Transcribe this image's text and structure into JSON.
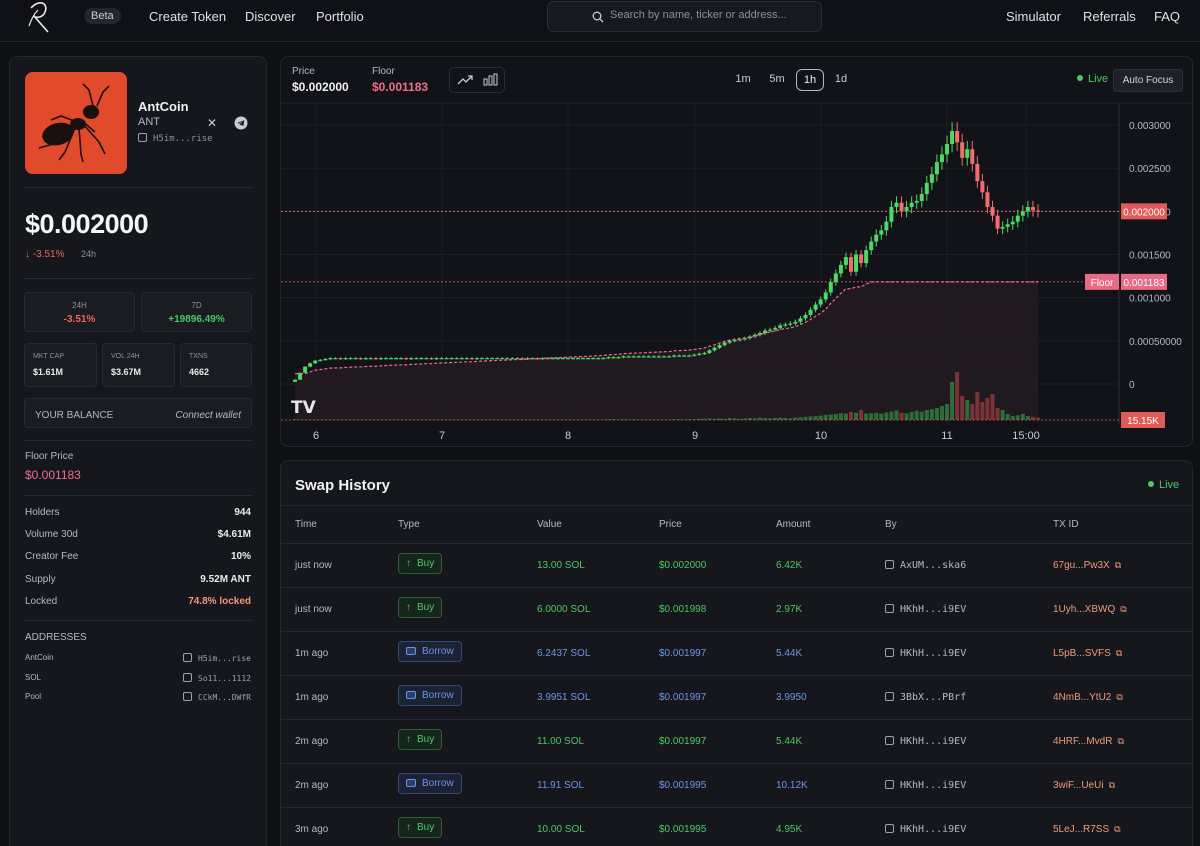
{
  "nav": {
    "beta": "Beta",
    "links": [
      "Create Token",
      "Discover",
      "Portfolio"
    ],
    "right_links": [
      "Simulator",
      "Referrals",
      "FAQ"
    ],
    "search_placeholder": "Search by name, ticker or address..."
  },
  "token": {
    "name": "AntCoin",
    "symbol": "ANT",
    "address": "H5im...rise",
    "price": "$0.002000",
    "change": "↓ -3.51%",
    "change_period": "24h",
    "stats": [
      {
        "label": "24H",
        "value": "-3.51%"
      },
      {
        "label": "7D",
        "value": "+19896.49%"
      }
    ],
    "market": [
      {
        "label": "MKT CAP",
        "value": "$1.61M"
      },
      {
        "label": "VOL 24H",
        "value": "$3.67M"
      },
      {
        "label": "TXNS",
        "value": "4662"
      }
    ],
    "balance_label": "YOUR BALANCE",
    "connect_label": "Connect wallet",
    "floor_label": "Floor Price",
    "floor_value": "$0.001183",
    "details": [
      {
        "label": "Holders",
        "value": "944"
      },
      {
        "label": "Volume 30d",
        "value": "$4.61M"
      },
      {
        "label": "Creator Fee",
        "value": "10%"
      },
      {
        "label": "Supply",
        "value": "9.52M ANT"
      },
      {
        "label": "Locked",
        "value": "74.8% locked"
      }
    ],
    "addresses_title": "ADDRESSES",
    "addresses": [
      {
        "label": "AntCoin",
        "value": "H5im...rise"
      },
      {
        "label": "SOL",
        "value": "So11...1112"
      },
      {
        "label": "Pool",
        "value": "CCkM...DWfR"
      }
    ]
  },
  "chart_header": {
    "price_label": "Price",
    "price_value": "$0.002000",
    "floor_label": "Floor",
    "floor_value": "$0.001183",
    "timeframes": [
      "1m",
      "5m",
      "1h",
      "1d"
    ],
    "active_timeframe": "1h",
    "live": "Live",
    "auto_focus": "Auto Focus"
  },
  "chart_data": {
    "type": "candlestick",
    "x_ticks": [
      "6",
      "7",
      "8",
      "9",
      "10",
      "11",
      "15:00"
    ],
    "y_ticks": [
      "0.003000",
      "0.002500",
      "0.002000",
      "0.001500",
      "0.001000",
      "0.00050000",
      "0"
    ],
    "y_range": [
      0,
      0.003
    ],
    "current_price": 0.002,
    "current_price_label": "0.002000",
    "floor_price": 0.001183,
    "floor_price_label": "0.001183",
    "floor_tag": "Floor",
    "volume_label": "15.15K",
    "colors": {
      "up": "#4cd964",
      "down": "#f26d6d",
      "floor": "#f06d8c"
    },
    "closes": [
      5e-05,
      0.00013,
      0.0002,
      0.00024,
      0.00027,
      0.00028,
      0.00029,
      0.0003,
      0.0003,
      0.00029,
      0.0003,
      0.0003,
      0.0003,
      0.00029,
      0.0003,
      0.0003,
      0.00029,
      0.0003,
      0.0003,
      0.0003,
      0.0003,
      0.0003,
      0.00029,
      0.0003,
      0.0003,
      0.0003,
      0.0003,
      0.00029,
      0.0003,
      0.0003,
      0.0003,
      0.0003,
      0.0003,
      0.0003,
      0.0003,
      0.00029,
      0.0003,
      0.0003,
      0.0003,
      0.0003,
      0.0003,
      0.0003,
      0.0003,
      0.0003,
      0.0003,
      0.00029,
      0.0003,
      0.0003,
      0.00029,
      0.0003,
      0.0003,
      0.0003,
      0.0003,
      0.0003,
      0.0003,
      0.0003,
      0.0003,
      0.0003,
      0.0003,
      0.0003,
      0.0003,
      0.0003,
      0.00031,
      0.00031,
      0.00031,
      0.00032,
      0.00032,
      0.00032,
      0.00032,
      0.00032,
      0.00032,
      0.00032,
      0.00032,
      0.00032,
      0.00032,
      0.00033,
      0.00033,
      0.00033,
      0.00033,
      0.00034,
      0.00035,
      0.00036,
      0.00039,
      0.00042,
      0.00045,
      0.00048,
      0.0005,
      0.00051,
      0.00052,
      0.00053,
      0.00055,
      0.00057,
      0.00059,
      0.00062,
      0.00063,
      0.00065,
      0.00068,
      0.00069,
      0.0007,
      0.00072,
      0.00076,
      0.0008,
      0.00086,
      0.00092,
      0.00098,
      0.00106,
      0.00118,
      0.00128,
      0.00138,
      0.00147,
      0.0013,
      0.0015,
      0.0014,
      0.00155,
      0.00165,
      0.00173,
      0.00178,
      0.00188,
      0.00205,
      0.0021,
      0.002,
      0.00205,
      0.0021,
      0.00212,
      0.0022,
      0.00233,
      0.00243,
      0.00257,
      0.00266,
      0.00278,
      0.00293,
      0.0028,
      0.00262,
      0.00272,
      0.00255,
      0.00235,
      0.00222,
      0.00205,
      0.00195,
      0.0018,
      0.00182,
      0.00185,
      0.00188,
      0.00195,
      0.002,
      0.00205,
      0.00201,
      0.002
    ],
    "volumes": [
      0.2,
      0.1,
      0.1,
      0.1,
      0.1,
      0.1,
      0.1,
      0.1,
      0.1,
      0.1,
      0.1,
      0.1,
      0.1,
      0.1,
      0.1,
      0.1,
      0.1,
      0.1,
      0.1,
      0.1,
      0.1,
      0.1,
      0.1,
      0.1,
      0.1,
      0.1,
      0.1,
      0.1,
      0.1,
      0.1,
      0.1,
      0.1,
      0.1,
      0.1,
      0.1,
      0.1,
      0.1,
      0.1,
      0.1,
      0.1,
      0.1,
      0.1,
      0.1,
      0.1,
      0.1,
      0.1,
      0.1,
      0.1,
      0.1,
      0.1,
      0.1,
      0.1,
      0.1,
      0.1,
      0.1,
      0.1,
      0.1,
      0.1,
      0.1,
      0.1,
      0.1,
      0.1,
      0.2,
      0.2,
      0.1,
      0.2,
      0.1,
      0.2,
      0.1,
      0.1,
      0.1,
      0.1,
      0.1,
      0.1,
      0.1,
      0.2,
      0.2,
      0.1,
      0.2,
      0.2,
      0.3,
      0.3,
      0.4,
      0.3,
      0.4,
      0.3,
      0.5,
      0.4,
      0.3,
      0.4,
      0.5,
      0.4,
      0.6,
      0.5,
      0.4,
      0.5,
      0.6,
      0.5,
      0.4,
      0.6,
      0.7,
      0.8,
      0.9,
      1.0,
      1.1,
      1.3,
      1.4,
      1.5,
      1.7,
      1.6,
      2.0,
      1.8,
      2.5,
      1.6,
      1.7,
      1.8,
      1.6,
      1.9,
      2.1,
      2.4,
      1.8,
      1.7,
      2.0,
      2.3,
      2.1,
      2.5,
      2.7,
      3.0,
      3.5,
      4.0,
      9.5,
      12.0,
      6.0,
      5.0,
      4.0,
      7.0,
      4.5,
      5.5,
      6.5,
      3.0,
      2.5,
      1.5,
      1.0,
      1.2,
      1.5,
      1.0,
      0.8,
      0.6
    ]
  },
  "swap": {
    "title": "Swap History",
    "live": "Live",
    "columns": [
      "Time",
      "Type",
      "Value",
      "Price",
      "Amount",
      "By",
      "TX ID"
    ],
    "rows": [
      {
        "time": "just now",
        "type": "Buy",
        "value": "13.00 SOL",
        "price": "$0.002000",
        "amount": "6.42K",
        "by": "AxUM...ska6",
        "tx": "67gu...Pw3X"
      },
      {
        "time": "just now",
        "type": "Buy",
        "value": "6.0000 SOL",
        "price": "$0.001998",
        "amount": "2.97K",
        "by": "HKhH...i9EV",
        "tx": "1Uyh...XBWQ"
      },
      {
        "time": "1m ago",
        "type": "Borrow",
        "value": "6.2437 SOL",
        "price": "$0.001997",
        "amount": "5.44K",
        "by": "HKhH...i9EV",
        "tx": "L5pB...SVFS"
      },
      {
        "time": "1m ago",
        "type": "Borrow",
        "value": "3.9951 SOL",
        "price": "$0.001997",
        "amount": "3.9950",
        "by": "3BbX...PBrf",
        "tx": "4NmB...YtU2"
      },
      {
        "time": "2m ago",
        "type": "Buy",
        "value": "11.00 SOL",
        "price": "$0.001997",
        "amount": "5.44K",
        "by": "HKhH...i9EV",
        "tx": "4HRF...MvdR"
      },
      {
        "time": "2m ago",
        "type": "Borrow",
        "value": "11.91 SOL",
        "price": "$0.001995",
        "amount": "10.12K",
        "by": "HKhH...i9EV",
        "tx": "3wiF...UeUi"
      },
      {
        "time": "3m ago",
        "type": "Buy",
        "value": "10.00 SOL",
        "price": "$0.001995",
        "amount": "4.95K",
        "by": "HKhH...i9EV",
        "tx": "5LeJ...R7SS"
      }
    ]
  }
}
